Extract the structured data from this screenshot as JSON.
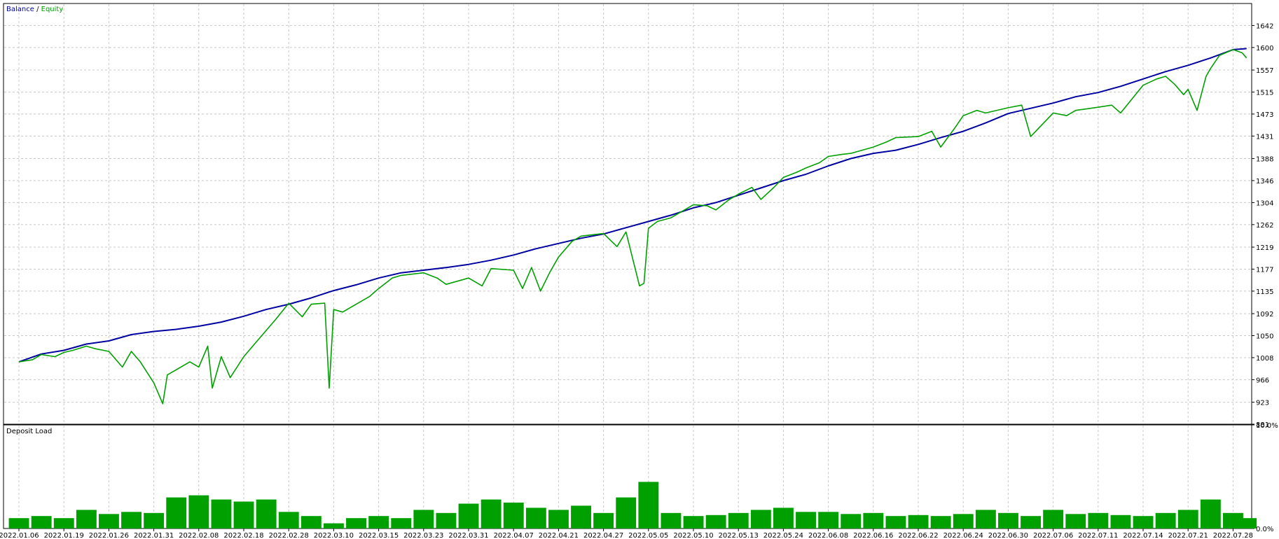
{
  "chart_data": [
    {
      "type": "line",
      "legend": [
        {
          "name": "Balance",
          "color": "#0000a0"
        },
        {
          "name": "Equity",
          "color": "#00a000"
        }
      ],
      "legend_separator": " / ",
      "legend_position": "top-left",
      "ylim": [
        881,
        1684
      ],
      "y_ticks": [
        881,
        923,
        966,
        1008,
        1050,
        1092,
        1135,
        1177,
        1219,
        1262,
        1304,
        1346,
        1388,
        1431,
        1473,
        1515,
        1557,
        1600,
        1642
      ],
      "y_axis_side": "right",
      "x_ticks": [
        "2022.01.06",
        "2022.01.19",
        "2022.01.26",
        "2022.01.31",
        "2022.02.08",
        "2022.02.18",
        "2022.02.28",
        "2022.03.10",
        "2022.03.15",
        "2022.03.23",
        "2022.03.31",
        "2022.04.07",
        "2022.04.21",
        "2022.04.27",
        "2022.05.05",
        "2022.05.10",
        "2022.05.13",
        "2022.05.24",
        "2022.06.08",
        "2022.06.16",
        "2022.06.22",
        "2022.06.24",
        "2022.06.30",
        "2022.07.06",
        "2022.07.11",
        "2022.07.14",
        "2022.07.21",
        "2022.07.28"
      ],
      "grid": true,
      "series": [
        {
          "name": "Balance",
          "color": "#0000a0",
          "x": [
            0,
            0.5,
            1,
            1.5,
            2,
            2.5,
            3,
            3.5,
            4,
            4.5,
            5,
            5.5,
            6,
            6.5,
            7,
            7.5,
            8,
            8.5,
            9,
            9.5,
            10,
            10.5,
            11,
            11.5,
            12,
            12.5,
            13,
            13.5,
            14,
            14.5,
            15,
            15.5,
            16,
            16.5,
            17,
            17.5,
            18,
            18.5,
            19,
            19.5,
            20,
            20.5,
            21,
            21.5,
            22,
            22.5,
            23,
            23.5,
            24,
            24.5,
            25,
            25.5,
            26,
            26.5,
            27,
            27.3
          ],
          "values": [
            1000,
            1015,
            1022,
            1034,
            1040,
            1052,
            1058,
            1062,
            1068,
            1076,
            1087,
            1100,
            1110,
            1122,
            1136,
            1147,
            1160,
            1170,
            1175,
            1180,
            1186,
            1194,
            1204,
            1216,
            1226,
            1236,
            1244,
            1256,
            1268,
            1280,
            1294,
            1304,
            1318,
            1332,
            1346,
            1358,
            1374,
            1388,
            1398,
            1404,
            1415,
            1428,
            1440,
            1456,
            1474,
            1484,
            1494,
            1506,
            1514,
            1526,
            1540,
            1554,
            1566,
            1580,
            1596,
            1598
          ]
        },
        {
          "name": "Equity",
          "color": "#00a000",
          "x": [
            0,
            0.3,
            0.5,
            0.8,
            1,
            1.2,
            1.5,
            1.7,
            2,
            2.3,
            2.5,
            2.7,
            3,
            3.2,
            3.3,
            3.5,
            3.8,
            4,
            4.2,
            4.3,
            4.5,
            4.7,
            5,
            5.2,
            5.5,
            5.7,
            6,
            6.3,
            6.5,
            6.8,
            6.9,
            7,
            7.2,
            7.5,
            7.8,
            8,
            8.3,
            8.5,
            9,
            9.3,
            9.5,
            10,
            10.3,
            10.5,
            11,
            11.2,
            11.4,
            11.6,
            11.8,
            12,
            12.3,
            12.5,
            13,
            13.3,
            13.5,
            13.8,
            13.9,
            14,
            14.2,
            14.5,
            14.8,
            15,
            15.3,
            15.5,
            15.8,
            16,
            16.3,
            16.5,
            16.8,
            17,
            17.3,
            17.5,
            17.8,
            18,
            18.3,
            18.5,
            19,
            19.3,
            19.5,
            20,
            20.3,
            20.5,
            20.8,
            21,
            21.3,
            21.5,
            22,
            22.3,
            22.5,
            23,
            23.3,
            23.5,
            24,
            24.3,
            24.5,
            25,
            25.3,
            25.5,
            25.7,
            25.9,
            26,
            26.2,
            26.4,
            26.5,
            26.7,
            27,
            27.2,
            27.3
          ],
          "values": [
            1000,
            1004,
            1014,
            1010,
            1018,
            1022,
            1030,
            1025,
            1020,
            990,
            1020,
            1000,
            960,
            920,
            975,
            985,
            1000,
            990,
            1030,
            950,
            1010,
            970,
            1010,
            1030,
            1060,
            1080,
            1112,
            1086,
            1110,
            1112,
            950,
            1100,
            1095,
            1110,
            1125,
            1140,
            1160,
            1165,
            1170,
            1160,
            1148,
            1160,
            1145,
            1178,
            1175,
            1140,
            1180,
            1135,
            1170,
            1200,
            1230,
            1240,
            1245,
            1220,
            1248,
            1145,
            1150,
            1255,
            1268,
            1275,
            1290,
            1300,
            1298,
            1290,
            1310,
            1320,
            1333,
            1310,
            1334,
            1352,
            1362,
            1370,
            1380,
            1392,
            1396,
            1398,
            1410,
            1420,
            1428,
            1430,
            1440,
            1410,
            1445,
            1470,
            1480,
            1475,
            1485,
            1490,
            1430,
            1475,
            1470,
            1480,
            1486,
            1490,
            1475,
            1528,
            1540,
            1545,
            1530,
            1510,
            1520,
            1480,
            1545,
            1560,
            1585,
            1596,
            1590,
            1580
          ]
        }
      ]
    },
    {
      "type": "bar",
      "title": "Deposit Load",
      "title_position": "top-left",
      "ylim": [
        0,
        10
      ],
      "y_ticks": [
        "0.0%",
        "10.0%"
      ],
      "y_axis_side": "right",
      "color": "#00a000",
      "x": [
        0,
        0.5,
        1,
        1.5,
        2,
        2.5,
        3,
        3.5,
        4,
        4.5,
        5,
        5.5,
        6,
        6.5,
        7,
        7.5,
        8,
        8.5,
        9,
        9.5,
        10,
        10.5,
        11,
        11.5,
        12,
        12.5,
        13,
        13.5,
        14,
        14.5,
        15,
        15.5,
        16,
        16.5,
        17,
        17.5,
        18,
        18.5,
        19,
        19.5,
        20,
        20.5,
        21,
        21.5,
        22,
        22.5,
        23,
        23.5,
        24,
        24.5,
        25,
        25.5,
        26,
        26.5,
        27,
        27.3
      ],
      "values": [
        1.0,
        1.2,
        1.0,
        1.8,
        1.4,
        1.6,
        1.5,
        3.0,
        3.2,
        2.8,
        2.6,
        2.8,
        1.6,
        1.2,
        0.5,
        1.0,
        1.2,
        1.0,
        1.8,
        1.5,
        2.4,
        2.8,
        2.5,
        2.0,
        1.8,
        2.2,
        1.5,
        3.0,
        4.5,
        1.5,
        1.2,
        1.3,
        1.5,
        1.8,
        2.0,
        1.6,
        1.6,
        1.4,
        1.5,
        1.2,
        1.3,
        1.2,
        1.4,
        1.8,
        1.5,
        1.2,
        1.8,
        1.4,
        1.5,
        1.3,
        1.2,
        1.5,
        1.8,
        2.8,
        1.5,
        1.0
      ]
    }
  ]
}
